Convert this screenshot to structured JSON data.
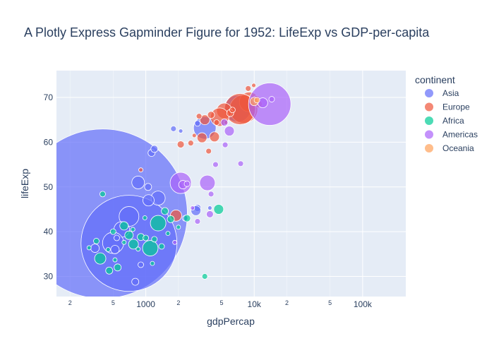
{
  "chart_data": {
    "type": "scatter",
    "title": "A Plotly Express Gapminder Figure for 1952: LifeExp vs GDP-per-capita",
    "xlabel": "gdpPercap",
    "ylabel": "lifeExp",
    "x_scale": "log",
    "xlim": [
      150,
      250000
    ],
    "ylim": [
      25.5,
      76
    ],
    "x_ticks_major": [
      {
        "value": 1000,
        "label": "1000"
      },
      {
        "value": 10000,
        "label": "10k"
      },
      {
        "value": 100000,
        "label": "100k"
      }
    ],
    "x_ticks_minor": [
      {
        "value": 200,
        "label": "2"
      },
      {
        "value": 500,
        "label": "5"
      },
      {
        "value": 2000,
        "label": "2"
      },
      {
        "value": 5000,
        "label": "5"
      },
      {
        "value": 20000,
        "label": "2"
      },
      {
        "value": 50000,
        "label": "5"
      }
    ],
    "y_ticks": [
      30,
      40,
      50,
      60,
      70
    ],
    "grid": true,
    "legend_title": "continent",
    "legend_position": "right",
    "series": [
      {
        "name": "Asia",
        "color": "#636efa",
        "points": [
          [
            400,
            44,
            120
          ],
          [
            700,
            37.4,
            68
          ],
          [
            1800,
            63,
            4
          ],
          [
            3500,
            63.2,
            16
          ],
          [
            7000,
            67.5,
            19
          ],
          [
            850,
            51,
            9
          ],
          [
            700,
            43.4,
            14
          ],
          [
            600,
            40.5,
            11
          ],
          [
            500,
            37.5,
            15
          ],
          [
            340,
            36.3,
            6
          ],
          [
            1300,
            47.5,
            10
          ],
          [
            1060,
            47,
            8
          ],
          [
            1130,
            57.6,
            5
          ],
          [
            1200,
            58.5,
            5
          ],
          [
            2100,
            62.5,
            3
          ],
          [
            3000,
            45.3,
            5
          ],
          [
            2900,
            44.7,
            7
          ],
          [
            3900,
            45.3,
            3
          ],
          [
            520,
            36,
            6
          ],
          [
            900,
            32.6,
            4
          ],
          [
            800,
            28.8,
            5
          ],
          [
            2300,
            43,
            4
          ],
          [
            3000,
            64.2,
            4
          ],
          [
            540,
            38.6,
            4
          ],
          [
            1050,
            50,
            5
          ]
        ]
      },
      {
        "name": "Europe",
        "color": "#ef553b",
        "points": [
          [
            9000,
            69,
            14
          ],
          [
            8000,
            67.4,
            20
          ],
          [
            7400,
            67.4,
            22
          ],
          [
            5300,
            67,
            11
          ],
          [
            4800,
            65.6,
            13
          ],
          [
            3300,
            61,
            7
          ],
          [
            4300,
            61.2,
            7
          ],
          [
            2100,
            59.5,
            5
          ],
          [
            2600,
            59.8,
            4
          ],
          [
            9900,
            72.7,
            3
          ],
          [
            8800,
            72,
            4
          ],
          [
            10500,
            69.6,
            5
          ],
          [
            11000,
            68.5,
            5
          ],
          [
            6000,
            66.5,
            5
          ],
          [
            3500,
            65,
            7
          ],
          [
            4000,
            66.1,
            5
          ],
          [
            3100,
            65.8,
            4
          ],
          [
            4500,
            64.4,
            4
          ],
          [
            1900,
            43.6,
            8
          ],
          [
            5500,
            64.4,
            3
          ],
          [
            3800,
            58,
            4
          ],
          [
            900,
            53.8,
            3
          ],
          [
            2800,
            61.5,
            3
          ],
          [
            6300,
            67.2,
            4
          ]
        ]
      },
      {
        "name": "Africa",
        "color": "#00cc96",
        "points": [
          [
            1100,
            36.3,
            11
          ],
          [
            1300,
            41.9,
            11
          ],
          [
            380,
            34,
            8
          ],
          [
            4700,
            45,
            7
          ],
          [
            770,
            37.2,
            7
          ],
          [
            630,
            41.3,
            6
          ],
          [
            700,
            39.2,
            6
          ],
          [
            1500,
            44.6,
            5
          ],
          [
            1700,
            42.8,
            5
          ],
          [
            2400,
            43,
            5
          ],
          [
            550,
            32,
            5
          ],
          [
            460,
            31.3,
            5
          ],
          [
            900,
            38.8,
            5
          ],
          [
            350,
            37.9,
            4
          ],
          [
            500,
            40,
            4
          ],
          [
            1400,
            36.7,
            4
          ],
          [
            400,
            48.4,
            4
          ],
          [
            3500,
            30,
            4
          ],
          [
            1000,
            38.6,
            4
          ],
          [
            1200,
            38.3,
            4
          ],
          [
            850,
            36.1,
            3
          ],
          [
            300,
            36.4,
            3
          ],
          [
            630,
            37.6,
            3
          ],
          [
            1150,
            32.9,
            3
          ],
          [
            520,
            33.7,
            3
          ],
          [
            1600,
            39.6,
            3
          ],
          [
            2000,
            41,
            3
          ],
          [
            760,
            40.5,
            3
          ],
          [
            980,
            43.1,
            3
          ],
          [
            450,
            36,
            3
          ]
        ]
      },
      {
        "name": "Americas",
        "color": "#ab63fa",
        "points": [
          [
            13900,
            68.5,
            30
          ],
          [
            2100,
            50.9,
            15
          ],
          [
            3700,
            50.9,
            11
          ],
          [
            12000,
            68.8,
            7
          ],
          [
            5900,
            62.5,
            7
          ],
          [
            5300,
            64.4,
            5
          ],
          [
            5400,
            59.4,
            4
          ],
          [
            4400,
            55,
            4
          ],
          [
            4000,
            48.4,
            4
          ],
          [
            7500,
            55.2,
            4
          ],
          [
            2200,
            50.5,
            6
          ],
          [
            3900,
            43.9,
            5
          ],
          [
            3000,
            42.3,
            4
          ],
          [
            2400,
            50.7,
            4
          ],
          [
            1850,
            37.6,
            3
          ],
          [
            14500,
            69.6,
            4
          ],
          [
            2700,
            45.3,
            3
          ]
        ]
      },
      {
        "name": "Oceania",
        "color": "#ffa15a",
        "points": [
          [
            10000,
            69.1,
            6
          ],
          [
            10600,
            69.4,
            4
          ]
        ]
      }
    ]
  }
}
